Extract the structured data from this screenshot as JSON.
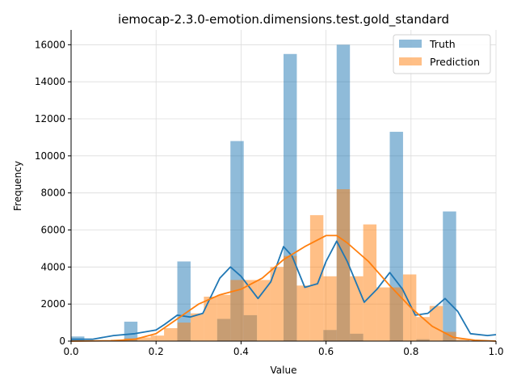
{
  "chart_data": {
    "type": "bar",
    "title": "iemocap-2.3.0-emotion.dimensions.test.gold_standard",
    "xlabel": "Value",
    "ylabel": "Frequency",
    "xlim": [
      0,
      1
    ],
    "ylim": [
      0,
      16800
    ],
    "xticks": [
      "0.0",
      "0.2",
      "0.4",
      "0.6",
      "0.8",
      "1.0"
    ],
    "xtick_values": [
      0,
      0.2,
      0.4,
      0.6,
      0.8,
      1.0
    ],
    "yticks": [
      "0",
      "2000",
      "4000",
      "6000",
      "8000",
      "10000",
      "12000",
      "14000",
      "16000"
    ],
    "ytick_values": [
      0,
      2000,
      4000,
      6000,
      8000,
      10000,
      12000,
      14000,
      16000
    ],
    "grid": true,
    "legend_position": "top-right",
    "series": [
      {
        "name": "Truth",
        "color": "#1f77b4",
        "bin_width": 0.03125,
        "bins": [
          {
            "x0": 0.0,
            "value": 250
          },
          {
            "x0": 0.125,
            "value": 1050
          },
          {
            "x0": 0.25,
            "value": 4300
          },
          {
            "x0": 0.34375,
            "value": 1200
          },
          {
            "x0": 0.375,
            "value": 10800
          },
          {
            "x0": 0.40625,
            "value": 1400
          },
          {
            "x0": 0.5,
            "value": 15500
          },
          {
            "x0": 0.59375,
            "value": 600
          },
          {
            "x0": 0.625,
            "value": 16000
          },
          {
            "x0": 0.65625,
            "value": 400
          },
          {
            "x0": 0.75,
            "value": 11300
          },
          {
            "x0": 0.8125,
            "value": 100
          },
          {
            "x0": 0.875,
            "value": 7000
          }
        ],
        "kde": [
          [
            0.0,
            100
          ],
          [
            0.05,
            100
          ],
          [
            0.1,
            300
          ],
          [
            0.15,
            400
          ],
          [
            0.2,
            600
          ],
          [
            0.22,
            900
          ],
          [
            0.25,
            1400
          ],
          [
            0.28,
            1300
          ],
          [
            0.31,
            1500
          ],
          [
            0.35,
            3400
          ],
          [
            0.375,
            4000
          ],
          [
            0.4,
            3500
          ],
          [
            0.44,
            2300
          ],
          [
            0.47,
            3200
          ],
          [
            0.5,
            5100
          ],
          [
            0.52,
            4600
          ],
          [
            0.55,
            2900
          ],
          [
            0.58,
            3100
          ],
          [
            0.6,
            4300
          ],
          [
            0.625,
            5400
          ],
          [
            0.65,
            4300
          ],
          [
            0.69,
            2100
          ],
          [
            0.72,
            2800
          ],
          [
            0.75,
            3700
          ],
          [
            0.78,
            2800
          ],
          [
            0.81,
            1400
          ],
          [
            0.84,
            1500
          ],
          [
            0.88,
            2300
          ],
          [
            0.91,
            1600
          ],
          [
            0.94,
            400
          ],
          [
            0.98,
            300
          ],
          [
            1.0,
            350
          ]
        ]
      },
      {
        "name": "Prediction",
        "color": "#ff7f0e",
        "bin_width": 0.03125,
        "bins": [
          {
            "x0": 0.09375,
            "value": 80
          },
          {
            "x0": 0.125,
            "value": 150
          },
          {
            "x0": 0.15625,
            "value": 200
          },
          {
            "x0": 0.1875,
            "value": 300
          },
          {
            "x0": 0.21875,
            "value": 700
          },
          {
            "x0": 0.25,
            "value": 1000
          },
          {
            "x0": 0.28125,
            "value": 1500
          },
          {
            "x0": 0.3125,
            "value": 2400
          },
          {
            "x0": 0.34375,
            "value": 2500
          },
          {
            "x0": 0.375,
            "value": 3300
          },
          {
            "x0": 0.40625,
            "value": 3300
          },
          {
            "x0": 0.4375,
            "value": 3300
          },
          {
            "x0": 0.46875,
            "value": 4000
          },
          {
            "x0": 0.5,
            "value": 4600
          },
          {
            "x0": 0.53125,
            "value": 3000
          },
          {
            "x0": 0.5625,
            "value": 6800
          },
          {
            "x0": 0.59375,
            "value": 3500
          },
          {
            "x0": 0.625,
            "value": 8200
          },
          {
            "x0": 0.65625,
            "value": 3500
          },
          {
            "x0": 0.6875,
            "value": 6300
          },
          {
            "x0": 0.71875,
            "value": 2900
          },
          {
            "x0": 0.75,
            "value": 2900
          },
          {
            "x0": 0.78125,
            "value": 3600
          },
          {
            "x0": 0.8125,
            "value": 1300
          },
          {
            "x0": 0.84375,
            "value": 1900
          },
          {
            "x0": 0.875,
            "value": 500
          },
          {
            "x0": 0.90625,
            "value": 100
          }
        ],
        "kde": [
          [
            0.0,
            0
          ],
          [
            0.1,
            20
          ],
          [
            0.15,
            100
          ],
          [
            0.2,
            400
          ],
          [
            0.25,
            1200
          ],
          [
            0.3,
            2000
          ],
          [
            0.35,
            2500
          ],
          [
            0.4,
            2800
          ],
          [
            0.45,
            3400
          ],
          [
            0.5,
            4400
          ],
          [
            0.55,
            5100
          ],
          [
            0.6,
            5700
          ],
          [
            0.625,
            5700
          ],
          [
            0.65,
            5300
          ],
          [
            0.7,
            4300
          ],
          [
            0.75,
            3000
          ],
          [
            0.8,
            1800
          ],
          [
            0.85,
            800
          ],
          [
            0.9,
            200
          ],
          [
            0.95,
            50
          ],
          [
            1.0,
            0
          ]
        ]
      }
    ]
  }
}
